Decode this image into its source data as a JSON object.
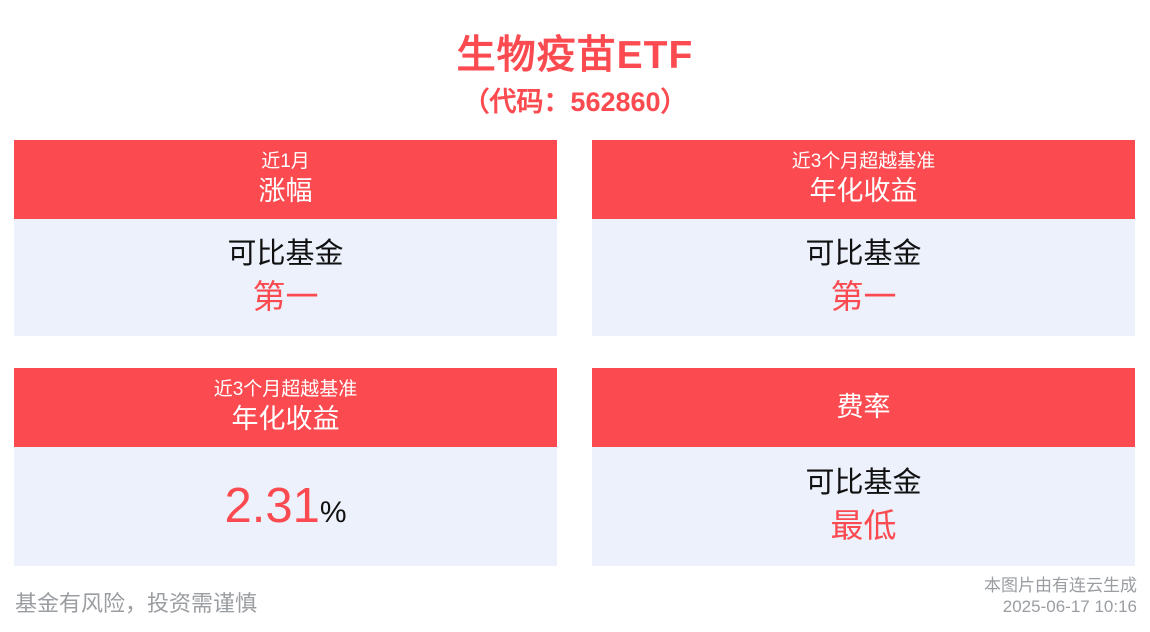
{
  "page": {
    "title": "生物疫苗ETF",
    "subtitle": "（代码：562860）"
  },
  "cards": [
    {
      "header_line1": "近1月",
      "header_line2": "涨幅",
      "body_line1": "可比基金",
      "body_highlight": "第一"
    },
    {
      "header_line1": "近3个月超越基准",
      "header_line2": "年化收益",
      "body_line1": "可比基金",
      "body_highlight": "第一"
    },
    {
      "header_line1": "近3个月超越基准",
      "header_line2": "年化收益",
      "value": "2.31",
      "value_unit": "%"
    },
    {
      "header_line1": "费率",
      "body_line1": "可比基金",
      "body_highlight": "最低"
    }
  ],
  "footer": {
    "disclaimer": "基金有风险，投资需谨慎",
    "source": "本图片由有连云生成",
    "timestamp": "2025-06-17 10:16"
  },
  "colors": {
    "accent_red": "#fc4b50",
    "card_body_bg": "#ecf1fc",
    "footer_gray": "#9a9da1",
    "text_ink": "#111111"
  }
}
